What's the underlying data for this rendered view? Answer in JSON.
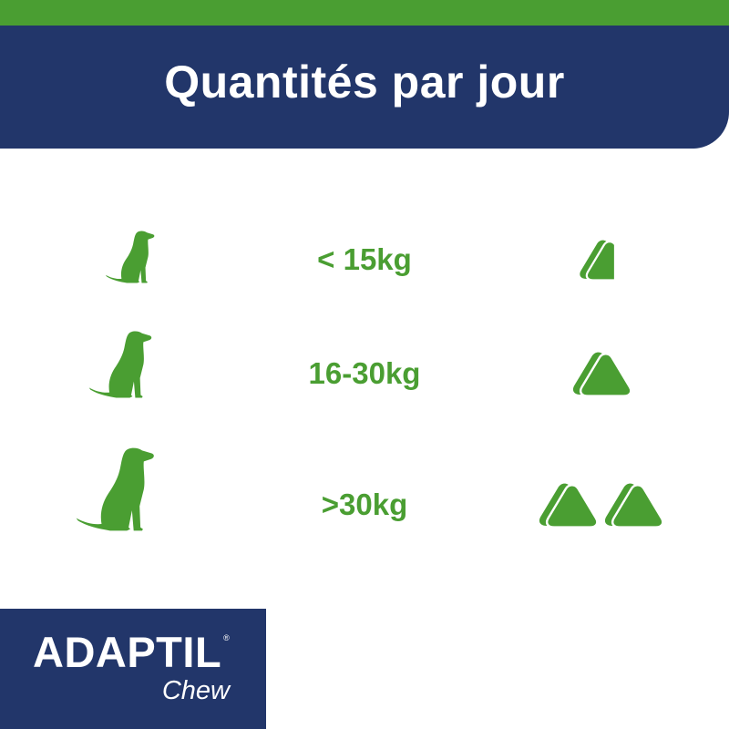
{
  "header": {
    "title": "Quantités par jour"
  },
  "rows": [
    {
      "weight": "< 15kg",
      "chews": 0.5,
      "dog_size": "small"
    },
    {
      "weight": "16-30kg",
      "chews": 1,
      "dog_size": "medium"
    },
    {
      "weight": ">30kg",
      "chews": 2,
      "dog_size": "large"
    }
  ],
  "logo": {
    "brand": "ADAPTIL",
    "registered": "®",
    "product": "Chew"
  },
  "colors": {
    "green": "#4a9e32",
    "navy": "#22366a"
  },
  "icons": [
    "dog-silhouette-icon",
    "chew-tablet-icon"
  ]
}
